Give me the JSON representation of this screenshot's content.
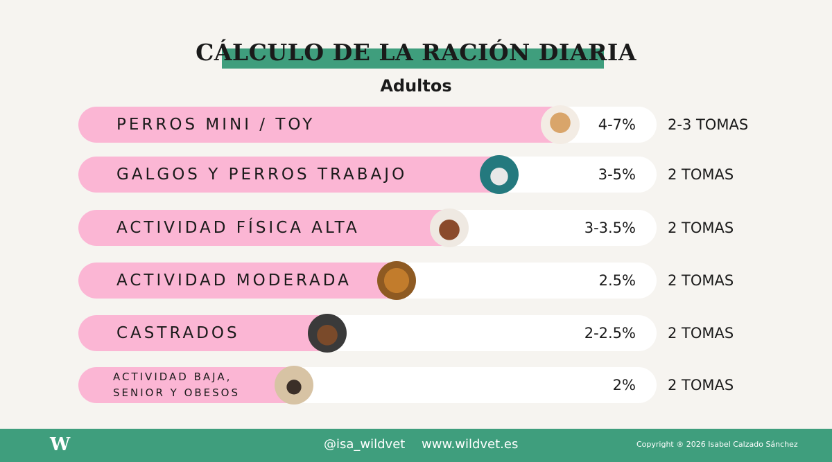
{
  "header": {
    "title": "CÁLCULO DE LA RACIÓN DIARIA",
    "subtitle": "Adultos"
  },
  "rows": [
    {
      "label": "PERROS MINI / TOY",
      "percent": "4-7%",
      "meals": "2-3 TOMAS"
    },
    {
      "label": "GALGOS Y PERROS TRABAJO",
      "percent": "3-5%",
      "meals": "2 TOMAS"
    },
    {
      "label": "ACTIVIDAD FÍSICA ALTA",
      "percent": "3-3.5%",
      "meals": "2 TOMAS"
    },
    {
      "label": "ACTIVIDAD MODERADA",
      "percent": "2.5%",
      "meals": "2 TOMAS"
    },
    {
      "label": "CASTRADOS",
      "percent": "2-2.5%",
      "meals": "2 TOMAS"
    },
    {
      "label": [
        "ACTIVIDAD BAJA,",
        "SENIOR Y OBESOS"
      ],
      "percent": "2%",
      "meals": "2 TOMAS"
    }
  ],
  "footer": {
    "logo": "W",
    "handle": "@isa_wildvet",
    "website": "www.wildvet.es",
    "copyright": "Copyright ® 2026 Isabel Calzado Sánchez"
  }
}
